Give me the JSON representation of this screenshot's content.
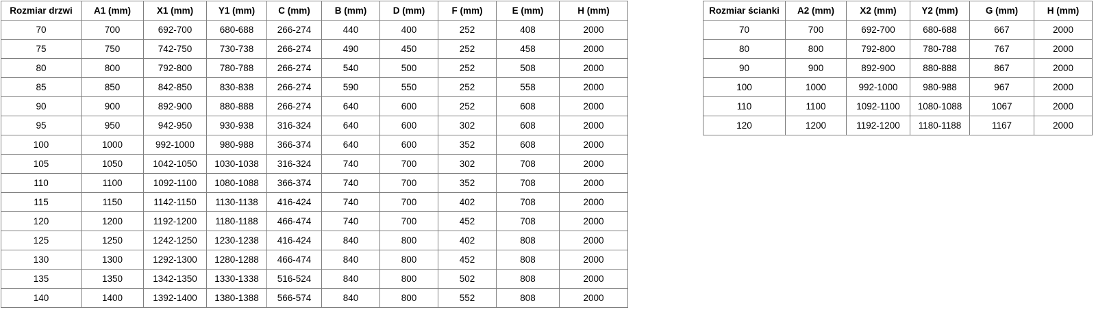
{
  "colors": {
    "background": "#ffffff",
    "border": "#7f7f7f",
    "text": "#000000"
  },
  "door_table": {
    "title": "Rozmiar drzwi",
    "headers": [
      "Rozmiar drzwi",
      "A1 (mm)",
      "X1 (mm)",
      "Y1 (mm)",
      "C (mm)",
      "B (mm)",
      "D (mm)",
      "F (mm)",
      "E (mm)",
      "H (mm)"
    ],
    "rows": [
      [
        "70",
        "700",
        "692-700",
        "680-688",
        "266-274",
        "440",
        "400",
        "252",
        "408",
        "2000"
      ],
      [
        "75",
        "750",
        "742-750",
        "730-738",
        "266-274",
        "490",
        "450",
        "252",
        "458",
        "2000"
      ],
      [
        "80",
        "800",
        "792-800",
        "780-788",
        "266-274",
        "540",
        "500",
        "252",
        "508",
        "2000"
      ],
      [
        "85",
        "850",
        "842-850",
        "830-838",
        "266-274",
        "590",
        "550",
        "252",
        "558",
        "2000"
      ],
      [
        "90",
        "900",
        "892-900",
        "880-888",
        "266-274",
        "640",
        "600",
        "252",
        "608",
        "2000"
      ],
      [
        "95",
        "950",
        "942-950",
        "930-938",
        "316-324",
        "640",
        "600",
        "302",
        "608",
        "2000"
      ],
      [
        "100",
        "1000",
        "992-1000",
        "980-988",
        "366-374",
        "640",
        "600",
        "352",
        "608",
        "2000"
      ],
      [
        "105",
        "1050",
        "1042-1050",
        "1030-1038",
        "316-324",
        "740",
        "700",
        "302",
        "708",
        "2000"
      ],
      [
        "110",
        "1100",
        "1092-1100",
        "1080-1088",
        "366-374",
        "740",
        "700",
        "352",
        "708",
        "2000"
      ],
      [
        "115",
        "1150",
        "1142-1150",
        "1130-1138",
        "416-424",
        "740",
        "700",
        "402",
        "708",
        "2000"
      ],
      [
        "120",
        "1200",
        "1192-1200",
        "1180-1188",
        "466-474",
        "740",
        "700",
        "452",
        "708",
        "2000"
      ],
      [
        "125",
        "1250",
        "1242-1250",
        "1230-1238",
        "416-424",
        "840",
        "800",
        "402",
        "808",
        "2000"
      ],
      [
        "130",
        "1300",
        "1292-1300",
        "1280-1288",
        "466-474",
        "840",
        "800",
        "452",
        "808",
        "2000"
      ],
      [
        "135",
        "1350",
        "1342-1350",
        "1330-1338",
        "516-524",
        "840",
        "800",
        "502",
        "808",
        "2000"
      ],
      [
        "140",
        "1400",
        "1392-1400",
        "1380-1388",
        "566-574",
        "840",
        "800",
        "552",
        "808",
        "2000"
      ]
    ]
  },
  "wall_table": {
    "title": "Rozmiar ścianki",
    "headers": [
      "Rozmiar ścianki",
      "A2 (mm)",
      "X2 (mm)",
      "Y2 (mm)",
      "G (mm)",
      "H (mm)"
    ],
    "rows": [
      [
        "70",
        "700",
        "692-700",
        "680-688",
        "667",
        "2000"
      ],
      [
        "80",
        "800",
        "792-800",
        "780-788",
        "767",
        "2000"
      ],
      [
        "90",
        "900",
        "892-900",
        "880-888",
        "867",
        "2000"
      ],
      [
        "100",
        "1000",
        "992-1000",
        "980-988",
        "967",
        "2000"
      ],
      [
        "110",
        "1100",
        "1092-1100",
        "1080-1088",
        "1067",
        "2000"
      ],
      [
        "120",
        "1200",
        "1192-1200",
        "1180-1188",
        "1167",
        "2000"
      ]
    ]
  }
}
